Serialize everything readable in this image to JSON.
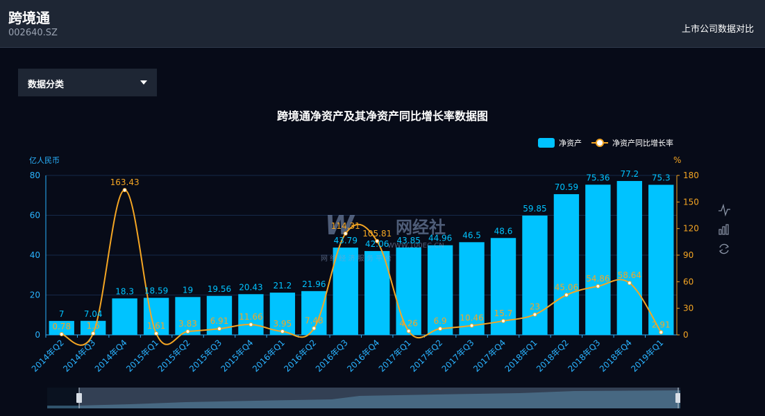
{
  "header": {
    "company_name": "跨境通",
    "stock_code": "002640.SZ",
    "compare_link": "上市公司数据对比"
  },
  "controls": {
    "category_label": "数据分类"
  },
  "watermark": {
    "logo_text": "网经社",
    "url_text": "WWW.100EC.CN",
    "tagline": "网 络 经 济 服 务 平 台"
  },
  "colors": {
    "bar": "#00c3ff",
    "line": "#f5a623",
    "left_axis": "#2ab3ff",
    "right_axis": "#f5a623",
    "background": "#070b18",
    "panel": "#1e2634"
  },
  "icons": [
    "line-chart-icon",
    "bar-chart-icon",
    "refresh-icon"
  ],
  "chart_data": {
    "type": "bar",
    "title": "跨境通净资产及其净资产同比增长率数据图",
    "ylabel_left": "亿人民币",
    "ylabel_right": "%",
    "ylim_left": [
      0,
      80
    ],
    "ylim_right": [
      0,
      180
    ],
    "yticks_left": [
      0,
      20,
      40,
      60,
      80
    ],
    "yticks_right": [
      0,
      30,
      60,
      90,
      120,
      150,
      180
    ],
    "legend_position": "top-right",
    "grid": true,
    "categories": [
      "2014年Q2",
      "2014年Q3",
      "2014年Q4",
      "2015年Q1",
      "2015年Q2",
      "2015年Q3",
      "2015年Q4",
      "2016年Q1",
      "2016年Q2",
      "2016年Q3",
      "2016年Q4",
      "2017年Q1",
      "2017年Q2",
      "2017年Q3",
      "2017年Q4",
      "2018年Q1",
      "2018年Q2",
      "2018年Q3",
      "2018年Q4",
      "2019年Q1"
    ],
    "series": [
      {
        "name": "净资产",
        "type": "bar",
        "axis": "left",
        "values": [
          7,
          7.04,
          18.3,
          18.59,
          19,
          19.56,
          20.43,
          21.2,
          21.96,
          43.79,
          42.06,
          43.85,
          44.96,
          46.5,
          48.6,
          59.85,
          70.59,
          75.36,
          77.2,
          75.3
        ]
      },
      {
        "name": "净资产同比增长率",
        "type": "line",
        "axis": "right",
        "values": [
          0.78,
          1.6,
          163.43,
          1.61,
          3.83,
          6.91,
          11.66,
          3.95,
          7.48,
          114.31,
          105.81,
          4.26,
          6.9,
          10.46,
          15.7,
          23,
          45.06,
          54.86,
          58.64,
          2.91
        ]
      }
    ]
  }
}
